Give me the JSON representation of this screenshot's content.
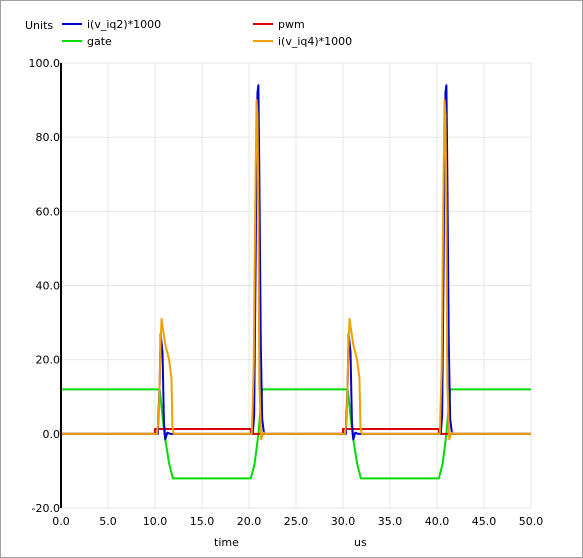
{
  "chart_data": {
    "type": "line",
    "ylabel": "Units",
    "xlabel": "time",
    "xunit": "us",
    "xlim": [
      0,
      50
    ],
    "ylim": [
      -20,
      100
    ],
    "x_ticks": [
      "0.0",
      "5.0",
      "10.0",
      "15.0",
      "20.0",
      "25.0",
      "30.0",
      "35.0",
      "40.0",
      "45.0",
      "50.0"
    ],
    "y_ticks": [
      "-20.0",
      "0.0",
      "20.0",
      "40.0",
      "60.0",
      "80.0",
      "100.0"
    ],
    "grid": true,
    "legend_placement": "top",
    "series": [
      {
        "name": "i(v_iq2)*1000",
        "color": "#0000cc",
        "points": [
          [
            0,
            0
          ],
          [
            10.3,
            0
          ],
          [
            10.5,
            14
          ],
          [
            10.6,
            27
          ],
          [
            10.8,
            22
          ],
          [
            10.95,
            3
          ],
          [
            11.1,
            -1.5
          ],
          [
            11.3,
            0.3
          ],
          [
            11.6,
            0
          ],
          [
            20.4,
            0
          ],
          [
            20.55,
            5
          ],
          [
            20.7,
            45
          ],
          [
            20.8,
            76
          ],
          [
            20.9,
            92
          ],
          [
            21.0,
            94
          ],
          [
            21.1,
            70
          ],
          [
            21.25,
            25
          ],
          [
            21.4,
            4
          ],
          [
            21.6,
            0
          ],
          [
            30.3,
            0
          ],
          [
            30.5,
            14
          ],
          [
            30.6,
            27
          ],
          [
            30.8,
            22
          ],
          [
            30.95,
            3
          ],
          [
            31.1,
            -1.5
          ],
          [
            31.3,
            0.3
          ],
          [
            31.6,
            0
          ],
          [
            40.4,
            0
          ],
          [
            40.55,
            5
          ],
          [
            40.7,
            45
          ],
          [
            40.8,
            80
          ],
          [
            40.9,
            92
          ],
          [
            41.0,
            94
          ],
          [
            41.1,
            70
          ],
          [
            41.25,
            25
          ],
          [
            41.4,
            4
          ],
          [
            41.6,
            0
          ],
          [
            50,
            0
          ]
        ]
      },
      {
        "name": "gate",
        "color": "#00dd00",
        "points": [
          [
            0,
            12
          ],
          [
            10.5,
            12
          ],
          [
            11.0,
            0
          ],
          [
            11.5,
            -8
          ],
          [
            11.9,
            -12
          ],
          [
            20.2,
            -12
          ],
          [
            20.6,
            -8
          ],
          [
            21.0,
            0
          ],
          [
            21.4,
            12
          ],
          [
            30.5,
            12
          ],
          [
            31.0,
            0
          ],
          [
            31.5,
            -8
          ],
          [
            31.9,
            -12
          ],
          [
            40.2,
            -12
          ],
          [
            40.6,
            -8
          ],
          [
            41.0,
            0
          ],
          [
            41.4,
            12
          ],
          [
            50,
            12
          ]
        ]
      },
      {
        "name": "pwm",
        "color": "#dd0000",
        "points": [
          [
            0,
            0
          ],
          [
            10.0,
            0
          ],
          [
            10.0,
            1.3
          ],
          [
            20.2,
            1.3
          ],
          [
            20.2,
            0
          ],
          [
            30.0,
            0
          ],
          [
            30.0,
            1.3
          ],
          [
            40.2,
            1.3
          ],
          [
            40.2,
            0
          ],
          [
            50,
            0
          ]
        ]
      },
      {
        "name": "i(v_iq4)*1000",
        "color": "#f0a000",
        "points": [
          [
            0,
            0
          ],
          [
            10.2,
            0
          ],
          [
            10.4,
            4
          ],
          [
            10.6,
            25
          ],
          [
            10.7,
            31
          ],
          [
            10.8,
            29
          ],
          [
            11.1,
            24
          ],
          [
            11.5,
            20
          ],
          [
            11.75,
            15
          ],
          [
            11.85,
            2
          ],
          [
            12.0,
            0
          ],
          [
            20.3,
            0
          ],
          [
            20.5,
            18
          ],
          [
            20.65,
            58
          ],
          [
            20.8,
            90
          ],
          [
            20.9,
            86
          ],
          [
            21.0,
            60
          ],
          [
            21.1,
            14
          ],
          [
            21.3,
            -1.5
          ],
          [
            21.5,
            0.3
          ],
          [
            21.7,
            0
          ],
          [
            30.2,
            0
          ],
          [
            30.4,
            4
          ],
          [
            30.6,
            25
          ],
          [
            30.7,
            31
          ],
          [
            30.8,
            29
          ],
          [
            31.1,
            24
          ],
          [
            31.5,
            20
          ],
          [
            31.75,
            15
          ],
          [
            31.85,
            2
          ],
          [
            32.0,
            0
          ],
          [
            40.3,
            0
          ],
          [
            40.5,
            18
          ],
          [
            40.65,
            58
          ],
          [
            40.8,
            90
          ],
          [
            40.9,
            86
          ],
          [
            41.0,
            60
          ],
          [
            41.1,
            14
          ],
          [
            41.3,
            -1.5
          ],
          [
            41.5,
            0.3
          ],
          [
            41.7,
            0
          ],
          [
            50,
            0
          ]
        ]
      }
    ]
  }
}
